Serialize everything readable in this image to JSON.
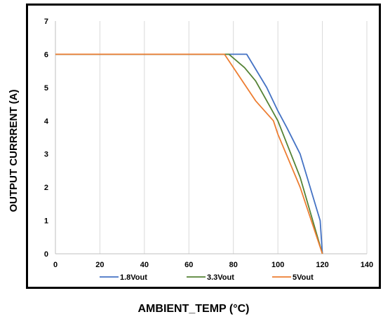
{
  "chart_data": {
    "type": "line",
    "title": "",
    "xlabel": "AMBIENT_TEMP (°C)",
    "ylabel": "OUTPUT CURRRENT (A)",
    "xlim": [
      0,
      140
    ],
    "ylim": [
      0,
      7
    ],
    "xticks": [
      0,
      20,
      40,
      60,
      80,
      100,
      120,
      140
    ],
    "yticks": [
      0,
      1,
      2,
      3,
      4,
      5,
      6,
      7
    ],
    "grid": "vertical",
    "legend_position": "bottom",
    "series": [
      {
        "name": "1.8Vout",
        "color": "#4472C4",
        "x": [
          0,
          86,
          95,
          100,
          104,
          110,
          119,
          120
        ],
        "y": [
          6,
          6,
          5,
          4.3,
          3.8,
          3,
          1,
          0
        ]
      },
      {
        "name": "3.3Vout",
        "color": "#548235",
        "x": [
          0,
          78,
          85,
          90,
          95,
          100,
          110,
          120
        ],
        "y": [
          6,
          6,
          5.6,
          5.2,
          4.6,
          4,
          2.3,
          0
        ]
      },
      {
        "name": "5Vout",
        "color": "#ED7D31",
        "x": [
          0,
          76,
          85,
          90,
          98,
          100,
          110,
          120
        ],
        "y": [
          6,
          6,
          5.1,
          4.6,
          4,
          3.6,
          2,
          0
        ]
      }
    ]
  }
}
